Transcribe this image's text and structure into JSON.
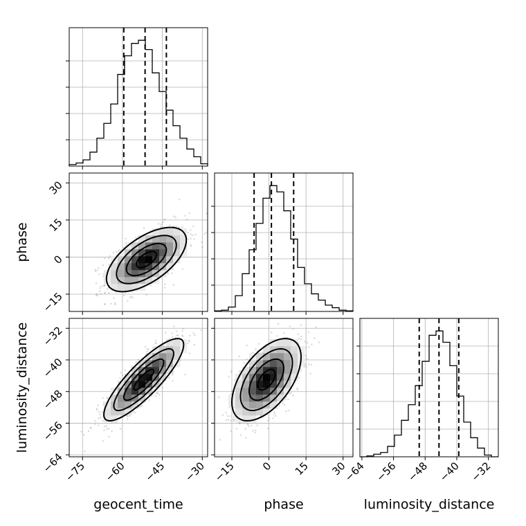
{
  "chart_data": {
    "type": "corner",
    "parameters": [
      "geocent_time",
      "phase",
      "luminosity_distance"
    ],
    "labels": {
      "geocent_time": "geocent_time",
      "phase": "phase",
      "luminosity_distance": "luminosity_distance"
    },
    "ranges": {
      "geocent_time": [
        -80,
        -28
      ],
      "phase": [
        -22,
        34
      ],
      "luminosity_distance": [
        -64.5,
        -29.5
      ]
    },
    "ticks": {
      "geocent_time": [
        -75,
        -60,
        -45,
        -30
      ],
      "phase": [
        -15,
        0,
        15,
        30
      ],
      "luminosity_distance": [
        -64,
        -56,
        -48,
        -40,
        -32
      ]
    },
    "tick_labels": {
      "geocent_time": [
        "−75",
        "−60",
        "−45",
        "−30"
      ],
      "phase": [
        "−15",
        "0",
        "15",
        "30"
      ],
      "luminosity_distance": [
        "−64",
        "−56",
        "−48",
        "−40",
        "−32"
      ]
    },
    "quantiles": {
      "geocent_time": [
        -59.5,
        -51.5,
        -43.5
      ],
      "phase": [
        -6,
        1,
        10
      ],
      "luminosity_distance": [
        -49.5,
        -44.5,
        -39.5
      ]
    },
    "histograms": {
      "geocent_time": {
        "edges": [
          -80,
          -77.4,
          -74.8,
          -72.2,
          -69.6,
          -67,
          -64.4,
          -61.8,
          -59.2,
          -56.6,
          -54,
          -51.4,
          -48.8,
          -46.2,
          -43.6,
          -41,
          -38.4,
          -35.8,
          -33.2,
          -30.6,
          -28
        ],
        "counts": [
          2,
          4,
          8,
          18,
          36,
          55,
          80,
          118,
          142,
          158,
          162,
          150,
          120,
          96,
          72,
          52,
          36,
          22,
          12,
          3
        ]
      },
      "phase": {
        "edges": [
          -22,
          -19.2,
          -16.4,
          -13.6,
          -10.8,
          -8,
          -5.2,
          -2.4,
          0.4,
          3.2,
          6,
          8.8,
          11.6,
          14.4,
          17.2,
          20,
          22.8,
          25.6,
          28.4,
          31.2,
          34
        ],
        "counts": [
          1,
          2,
          7,
          25,
          60,
          98,
          140,
          180,
          200,
          190,
          160,
          115,
          70,
          44,
          28,
          18,
          10,
          6,
          2,
          1
        ]
      },
      "luminosity_distance": {
        "edges": [
          -64.5,
          -62.75,
          -61,
          -59.25,
          -57.5,
          -55.75,
          -54,
          -52.25,
          -50.5,
          -48.75,
          -47,
          -45.25,
          -43.5,
          -41.75,
          -40,
          -38.25,
          -36.5,
          -34.75,
          -33,
          -31.25,
          -29.5
        ],
        "counts": [
          0,
          1,
          3,
          5,
          12,
          25,
          42,
          60,
          82,
          110,
          140,
          145,
          132,
          105,
          70,
          40,
          22,
          10,
          2,
          0
        ]
      }
    },
    "pairs": [
      {
        "x": "geocent_time",
        "y": "phase",
        "center": [
          -51,
          -1
        ],
        "sigma": [
          7.5,
          6.5
        ],
        "correlation": 0.6,
        "contour_levels_sigma": [
          0.5,
          1.0,
          1.5,
          2.0
        ]
      },
      {
        "x": "geocent_time",
        "y": "luminosity_distance",
        "center": [
          -52,
          -45
        ],
        "sigma": [
          7.5,
          5.2
        ],
        "correlation": 0.85,
        "contour_levels_sigma": [
          0.5,
          1.0,
          1.5,
          2.0
        ]
      },
      {
        "x": "phase",
        "y": "luminosity_distance",
        "center": [
          -1,
          -45
        ],
        "sigma": [
          7,
          5.2
        ],
        "correlation": 0.55,
        "contour_levels_sigma": [
          0.5,
          1.0,
          1.5,
          2.0
        ]
      }
    ],
    "grid": true,
    "legend": "none"
  },
  "colors": {
    "line": "#000000",
    "grid": "#b0b0b0",
    "scatter": "#8c8c8c",
    "density_dark": "#000000",
    "density_light": "#ffffff"
  }
}
